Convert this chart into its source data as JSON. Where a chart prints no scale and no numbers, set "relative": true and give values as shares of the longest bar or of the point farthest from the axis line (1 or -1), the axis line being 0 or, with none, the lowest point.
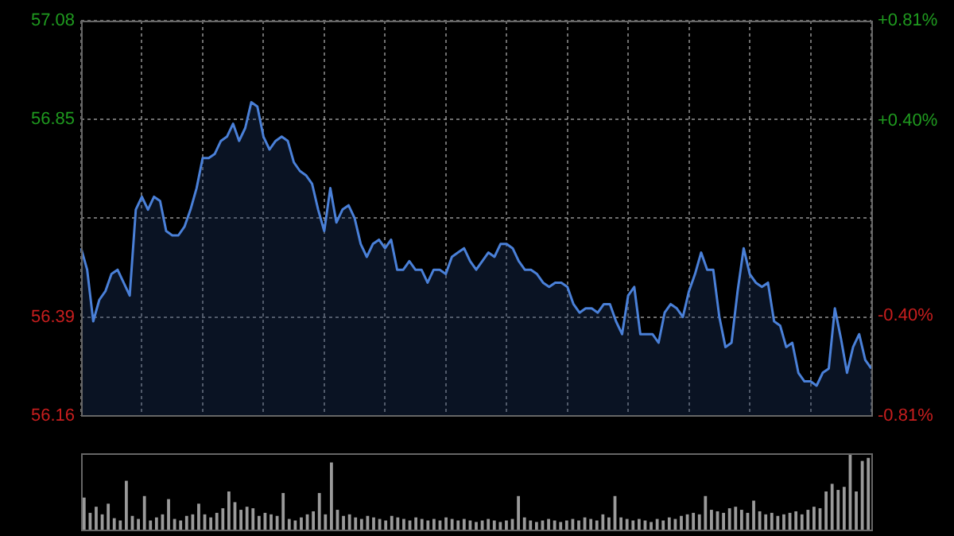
{
  "chart_data": [
    {
      "type": "area",
      "categories": [
        null,
        null,
        null,
        null,
        null,
        null,
        null,
        null,
        null,
        null,
        null,
        null,
        null,
        null,
        null,
        null,
        null,
        null,
        null,
        null,
        null,
        null,
        null,
        null,
        null,
        null,
        null,
        null,
        null,
        null,
        null,
        null,
        null,
        null,
        null,
        null,
        null,
        null,
        null,
        null,
        null,
        null,
        null,
        null,
        null,
        null,
        null,
        null,
        null,
        null,
        null,
        null,
        null,
        null,
        null,
        null,
        null,
        null,
        null,
        null,
        null,
        null,
        null,
        null,
        null,
        null,
        null,
        null,
        null,
        null,
        null,
        null,
        null,
        null,
        null,
        null,
        null,
        null,
        null,
        null,
        null,
        null,
        null,
        null,
        null,
        null,
        null,
        null,
        null,
        null,
        null,
        null,
        null,
        null,
        null,
        null,
        null,
        null,
        null,
        null,
        null,
        null,
        null,
        null,
        null,
        null,
        null,
        null,
        null,
        null,
        null,
        null,
        null,
        null,
        null,
        null,
        null,
        null,
        null,
        null,
        null,
        null,
        null,
        null,
        null,
        null,
        null,
        null,
        null,
        null,
        null
      ],
      "series": [
        {
          "color": "#4a80d8",
          "values": [
            56.55,
            56.5,
            56.38,
            56.43,
            56.45,
            56.49,
            56.5,
            56.47,
            56.44,
            56.64,
            56.67,
            56.64,
            56.67,
            56.66,
            56.59,
            56.58,
            56.58,
            56.6,
            56.64,
            56.69,
            56.76,
            56.76,
            56.77,
            56.8,
            56.81,
            56.84,
            56.8,
            56.83,
            56.89,
            56.88,
            56.81,
            56.78,
            56.8,
            56.81,
            56.8,
            56.75,
            56.73,
            56.72,
            56.7,
            56.64,
            56.59,
            56.69,
            56.61,
            56.64,
            56.65,
            56.62,
            56.56,
            56.53,
            56.56,
            56.57,
            56.55,
            56.57,
            56.5,
            56.5,
            56.52,
            56.5,
            56.5,
            56.47,
            56.5,
            56.5,
            56.49,
            56.53,
            56.54,
            56.55,
            56.52,
            56.5,
            56.52,
            56.54,
            56.53,
            56.56,
            56.56,
            56.55,
            56.52,
            56.5,
            56.5,
            56.49,
            56.47,
            56.46,
            56.47,
            56.47,
            56.46,
            56.42,
            56.4,
            56.41,
            56.41,
            56.4,
            56.42,
            56.42,
            56.38,
            56.35,
            56.44,
            56.46,
            56.35,
            56.35,
            56.35,
            56.33,
            56.4,
            56.42,
            56.41,
            56.39,
            56.45,
            56.49,
            56.54,
            56.5,
            56.5,
            56.39,
            56.32,
            56.33,
            56.45,
            56.55,
            56.49,
            56.47,
            56.46,
            56.47,
            56.38,
            56.37,
            56.32,
            56.33,
            56.26,
            56.24,
            56.24,
            56.23,
            56.26,
            56.27,
            56.41,
            56.34,
            56.26,
            56.32,
            56.35,
            56.29,
            56.27
          ]
        }
      ],
      "ylim": [
        56.16,
        57.08
      ],
      "yticks": [
        56.16,
        56.39,
        {
          "value": 56.62,
          "label": null
        },
        56.85,
        57.08
      ],
      "y2lim": [
        -0.81,
        0.81
      ],
      "y2ticks": [
        {
          "value": -0.81,
          "label": "-0.81%"
        },
        {
          "value": -0.4,
          "label": "-0.40%"
        },
        {
          "value": 0.4,
          "label": "+0.40%"
        },
        {
          "value": 0.81,
          "label": "+0.81%"
        }
      ],
      "grid": true,
      "legend": false,
      "tick_labels": "y"
    },
    {
      "type": "bar",
      "relative": true,
      "tick_labels": false,
      "legend": false,
      "categories": [
        null,
        null,
        null,
        null,
        null,
        null,
        null,
        null,
        null,
        null,
        null,
        null,
        null,
        null,
        null,
        null,
        null,
        null,
        null,
        null,
        null,
        null,
        null,
        null,
        null,
        null,
        null,
        null,
        null,
        null,
        null,
        null,
        null,
        null,
        null,
        null,
        null,
        null,
        null,
        null,
        null,
        null,
        null,
        null,
        null,
        null,
        null,
        null,
        null,
        null,
        null,
        null,
        null,
        null,
        null,
        null,
        null,
        null,
        null,
        null,
        null,
        null,
        null,
        null,
        null,
        null,
        null,
        null,
        null,
        null,
        null,
        null,
        null,
        null,
        null,
        null,
        null,
        null,
        null,
        null,
        null,
        null,
        null,
        null,
        null,
        null,
        null,
        null,
        null,
        null,
        null,
        null,
        null,
        null,
        null,
        null,
        null,
        null,
        null,
        null,
        null,
        null,
        null,
        null,
        null,
        null,
        null,
        null,
        null,
        null,
        null,
        null,
        null,
        null,
        null,
        null,
        null,
        null,
        null,
        null,
        null,
        null,
        null,
        null,
        null,
        null,
        null,
        null,
        null,
        null,
        null
      ],
      "series": [
        {
          "color": "#9a9a9a",
          "values": [
            0.42,
            0.22,
            0.3,
            0.2,
            0.34,
            0.15,
            0.12,
            0.64,
            0.18,
            0.14,
            0.44,
            0.12,
            0.16,
            0.2,
            0.4,
            0.14,
            0.12,
            0.18,
            0.2,
            0.34,
            0.2,
            0.16,
            0.22,
            0.28,
            0.5,
            0.36,
            0.26,
            0.3,
            0.28,
            0.18,
            0.22,
            0.2,
            0.18,
            0.48,
            0.14,
            0.12,
            0.16,
            0.2,
            0.24,
            0.48,
            0.2,
            0.88,
            0.26,
            0.18,
            0.2,
            0.16,
            0.14,
            0.18,
            0.16,
            0.14,
            0.12,
            0.18,
            0.16,
            0.14,
            0.12,
            0.16,
            0.14,
            0.12,
            0.14,
            0.12,
            0.16,
            0.14,
            0.12,
            0.14,
            0.12,
            0.1,
            0.12,
            0.14,
            0.12,
            0.1,
            0.12,
            0.14,
            0.44,
            0.16,
            0.12,
            0.1,
            0.12,
            0.14,
            0.12,
            0.1,
            0.12,
            0.14,
            0.12,
            0.16,
            0.14,
            0.12,
            0.2,
            0.16,
            0.44,
            0.16,
            0.14,
            0.12,
            0.14,
            0.12,
            0.1,
            0.14,
            0.12,
            0.16,
            0.14,
            0.18,
            0.2,
            0.22,
            0.2,
            0.44,
            0.26,
            0.24,
            0.22,
            0.28,
            0.3,
            0.26,
            0.22,
            0.38,
            0.24,
            0.2,
            0.22,
            0.18,
            0.2,
            0.22,
            0.24,
            0.2,
            0.26,
            0.3,
            0.28,
            0.5,
            0.6,
            0.52,
            0.56,
            1.0,
            0.5,
            0.9,
            0.94
          ]
        }
      ]
    }
  ]
}
